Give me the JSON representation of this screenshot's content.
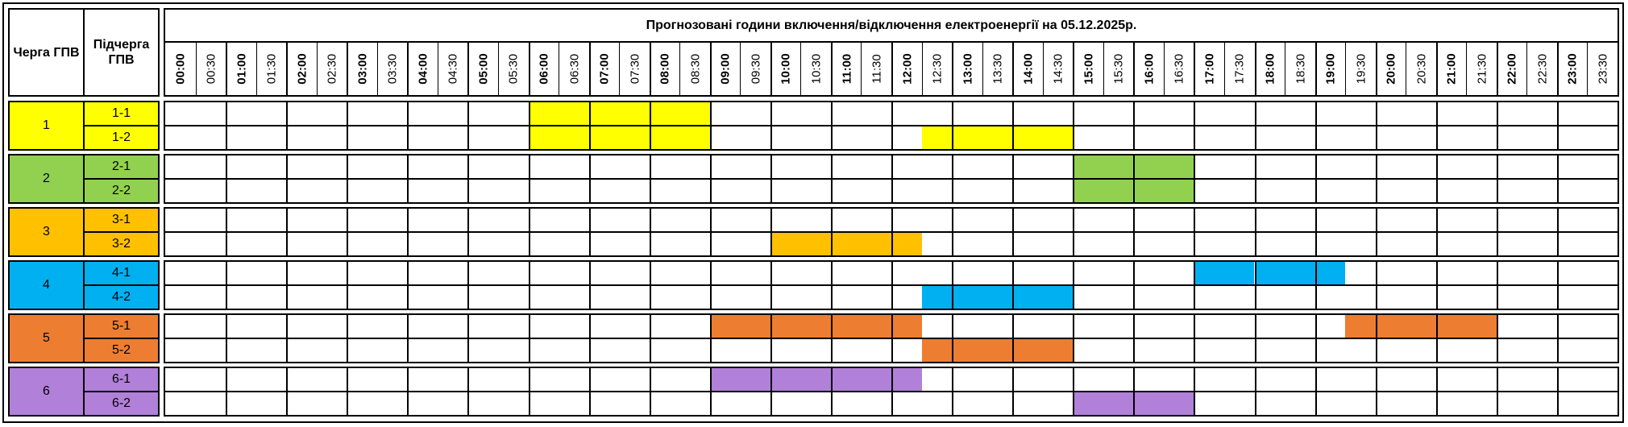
{
  "header": {
    "queue_label": "Черга ГПВ",
    "subqueue_label": "Підчерга ГПВ",
    "title": "Прогнозовані години включення/відключення електроенергії на 05.12.2025р."
  },
  "times": [
    "00:00",
    "00:30",
    "01:00",
    "01:30",
    "02:00",
    "02:30",
    "03:00",
    "03:30",
    "04:00",
    "04:30",
    "05:00",
    "05:30",
    "06:00",
    "06:30",
    "07:00",
    "07:30",
    "08:00",
    "08:30",
    "09:00",
    "09:30",
    "10:00",
    "10:30",
    "11:00",
    "11:30",
    "12:00",
    "12:30",
    "13:00",
    "13:30",
    "14:00",
    "14:30",
    "15:00",
    "15:30",
    "16:00",
    "16:30",
    "17:00",
    "17:30",
    "18:00",
    "18:30",
    "19:00",
    "19:30",
    "20:00",
    "20:30",
    "21:00",
    "21:30",
    "22:00",
    "22:30",
    "23:00",
    "23:30"
  ],
  "groups": [
    {
      "queue": "1",
      "color": "#ffff00",
      "subqueues": [
        {
          "name": "1-1",
          "off": [
            [
              "06:00",
              "09:00"
            ]
          ]
        },
        {
          "name": "1-2",
          "off": [
            [
              "06:00",
              "09:00"
            ],
            [
              "12:30",
              "15:00"
            ]
          ]
        }
      ]
    },
    {
      "queue": "2",
      "color": "#92d050",
      "subqueues": [
        {
          "name": "2-1",
          "off": [
            [
              "15:00",
              "17:00"
            ]
          ]
        },
        {
          "name": "2-2",
          "off": [
            [
              "15:00",
              "17:00"
            ]
          ]
        }
      ]
    },
    {
      "queue": "3",
      "color": "#ffc000",
      "subqueues": [
        {
          "name": "3-1",
          "off": []
        },
        {
          "name": "3-2",
          "off": [
            [
              "10:00",
              "12:30"
            ]
          ]
        }
      ]
    },
    {
      "queue": "4",
      "color": "#00b0f0",
      "subqueues": [
        {
          "name": "4-1",
          "off": [
            [
              "17:00",
              "19:30"
            ]
          ]
        },
        {
          "name": "4-2",
          "off": [
            [
              "12:30",
              "15:00"
            ]
          ]
        }
      ]
    },
    {
      "queue": "5",
      "color": "#ed7d31",
      "subqueues": [
        {
          "name": "5-1",
          "off": [
            [
              "09:00",
              "12:30"
            ],
            [
              "19:30",
              "22:00"
            ]
          ]
        },
        {
          "name": "5-2",
          "off": [
            [
              "12:30",
              "15:00"
            ]
          ]
        }
      ]
    },
    {
      "queue": "6",
      "color": "#b180d8",
      "subqueues": [
        {
          "name": "6-1",
          "off": [
            [
              "09:00",
              "12:30"
            ]
          ]
        },
        {
          "name": "6-2",
          "off": [
            [
              "15:00",
              "17:00"
            ]
          ]
        }
      ]
    }
  ]
}
